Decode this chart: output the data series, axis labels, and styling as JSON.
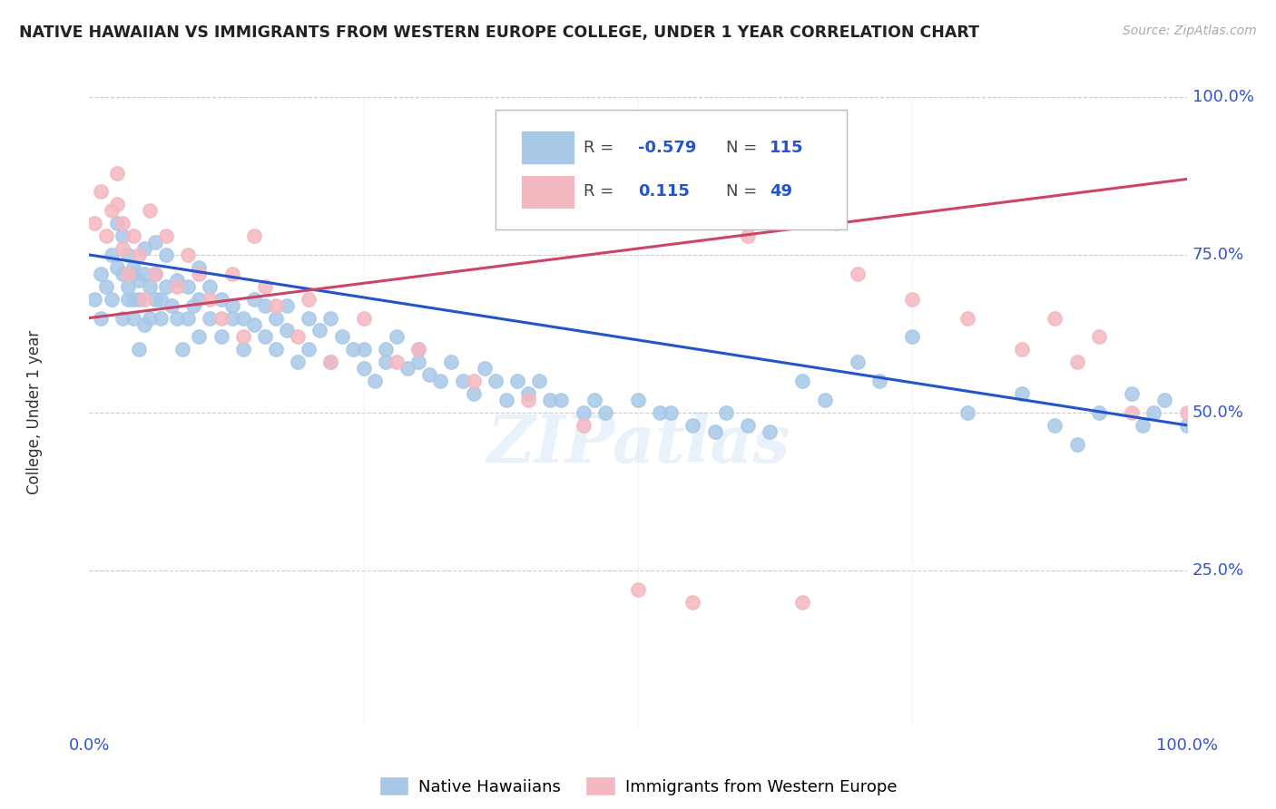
{
  "title": "NATIVE HAWAIIAN VS IMMIGRANTS FROM WESTERN EUROPE COLLEGE, UNDER 1 YEAR CORRELATION CHART",
  "source": "Source: ZipAtlas.com",
  "ylabel": "College, Under 1 year",
  "blue_color": "#a8c8e8",
  "pink_color": "#f4b8c0",
  "blue_line_color": "#2255cc",
  "pink_line_color": "#cc4466",
  "legend_blue_label": "Native Hawaiians",
  "legend_pink_label": "Immigrants from Western Europe",
  "R_blue": "-0.579",
  "N_blue": "115",
  "R_pink": "0.115",
  "N_pink": "49",
  "watermark": "ZIPatlas",
  "background_color": "#ffffff",
  "grid_color": "#cccccc",
  "tick_color": "#3355cc",
  "blue_scatter_x": [
    0.005,
    0.01,
    0.01,
    0.015,
    0.02,
    0.02,
    0.025,
    0.025,
    0.03,
    0.03,
    0.03,
    0.035,
    0.035,
    0.035,
    0.04,
    0.04,
    0.04,
    0.04,
    0.045,
    0.045,
    0.045,
    0.05,
    0.05,
    0.05,
    0.055,
    0.055,
    0.06,
    0.06,
    0.06,
    0.065,
    0.065,
    0.07,
    0.07,
    0.075,
    0.08,
    0.08,
    0.085,
    0.09,
    0.09,
    0.095,
    0.1,
    0.1,
    0.1,
    0.11,
    0.11,
    0.12,
    0.12,
    0.13,
    0.13,
    0.14,
    0.14,
    0.15,
    0.15,
    0.16,
    0.16,
    0.17,
    0.17,
    0.18,
    0.18,
    0.19,
    0.2,
    0.2,
    0.21,
    0.22,
    0.22,
    0.23,
    0.24,
    0.25,
    0.25,
    0.26,
    0.27,
    0.27,
    0.28,
    0.29,
    0.3,
    0.3,
    0.31,
    0.32,
    0.33,
    0.34,
    0.35,
    0.36,
    0.37,
    0.38,
    0.39,
    0.4,
    0.41,
    0.42,
    0.43,
    0.45,
    0.46,
    0.47,
    0.5,
    0.52,
    0.53,
    0.55,
    0.57,
    0.58,
    0.6,
    0.62,
    0.65,
    0.67,
    0.7,
    0.72,
    0.75,
    0.8,
    0.85,
    0.88,
    0.9,
    0.92,
    0.95,
    0.96,
    0.97,
    0.98,
    1.0
  ],
  "blue_scatter_y": [
    0.68,
    0.72,
    0.65,
    0.7,
    0.75,
    0.68,
    0.73,
    0.8,
    0.72,
    0.65,
    0.78,
    0.7,
    0.75,
    0.68,
    0.73,
    0.68,
    0.72,
    0.65,
    0.6,
    0.71,
    0.68,
    0.76,
    0.64,
    0.72,
    0.7,
    0.65,
    0.68,
    0.77,
    0.72,
    0.65,
    0.68,
    0.7,
    0.75,
    0.67,
    0.65,
    0.71,
    0.6,
    0.7,
    0.65,
    0.67,
    0.68,
    0.73,
    0.62,
    0.65,
    0.7,
    0.68,
    0.62,
    0.65,
    0.67,
    0.6,
    0.65,
    0.68,
    0.64,
    0.67,
    0.62,
    0.65,
    0.6,
    0.63,
    0.67,
    0.58,
    0.65,
    0.6,
    0.63,
    0.65,
    0.58,
    0.62,
    0.6,
    0.6,
    0.57,
    0.55,
    0.6,
    0.58,
    0.62,
    0.57,
    0.6,
    0.58,
    0.56,
    0.55,
    0.58,
    0.55,
    0.53,
    0.57,
    0.55,
    0.52,
    0.55,
    0.53,
    0.55,
    0.52,
    0.52,
    0.5,
    0.52,
    0.5,
    0.52,
    0.5,
    0.5,
    0.48,
    0.47,
    0.5,
    0.48,
    0.47,
    0.55,
    0.52,
    0.58,
    0.55,
    0.62,
    0.5,
    0.53,
    0.48,
    0.45,
    0.5,
    0.53,
    0.48,
    0.5,
    0.52,
    0.48
  ],
  "pink_scatter_x": [
    0.005,
    0.01,
    0.015,
    0.02,
    0.025,
    0.025,
    0.03,
    0.03,
    0.035,
    0.04,
    0.045,
    0.05,
    0.055,
    0.06,
    0.07,
    0.08,
    0.09,
    0.1,
    0.11,
    0.12,
    0.13,
    0.14,
    0.15,
    0.16,
    0.17,
    0.19,
    0.2,
    0.22,
    0.25,
    0.28,
    0.3,
    0.35,
    0.4,
    0.45,
    0.5,
    0.55,
    0.6,
    0.65,
    0.68,
    0.7,
    0.75,
    0.8,
    0.85,
    0.88,
    0.9,
    0.92,
    0.95,
    1.0,
    0.6
  ],
  "pink_scatter_y": [
    0.8,
    0.85,
    0.78,
    0.82,
    0.88,
    0.83,
    0.76,
    0.8,
    0.72,
    0.78,
    0.75,
    0.68,
    0.82,
    0.72,
    0.78,
    0.7,
    0.75,
    0.72,
    0.68,
    0.65,
    0.72,
    0.62,
    0.78,
    0.7,
    0.67,
    0.62,
    0.68,
    0.58,
    0.65,
    0.58,
    0.6,
    0.55,
    0.52,
    0.48,
    0.22,
    0.2,
    0.78,
    0.2,
    0.8,
    0.72,
    0.68,
    0.65,
    0.6,
    0.65,
    0.58,
    0.62,
    0.5,
    0.5,
    0.8
  ]
}
